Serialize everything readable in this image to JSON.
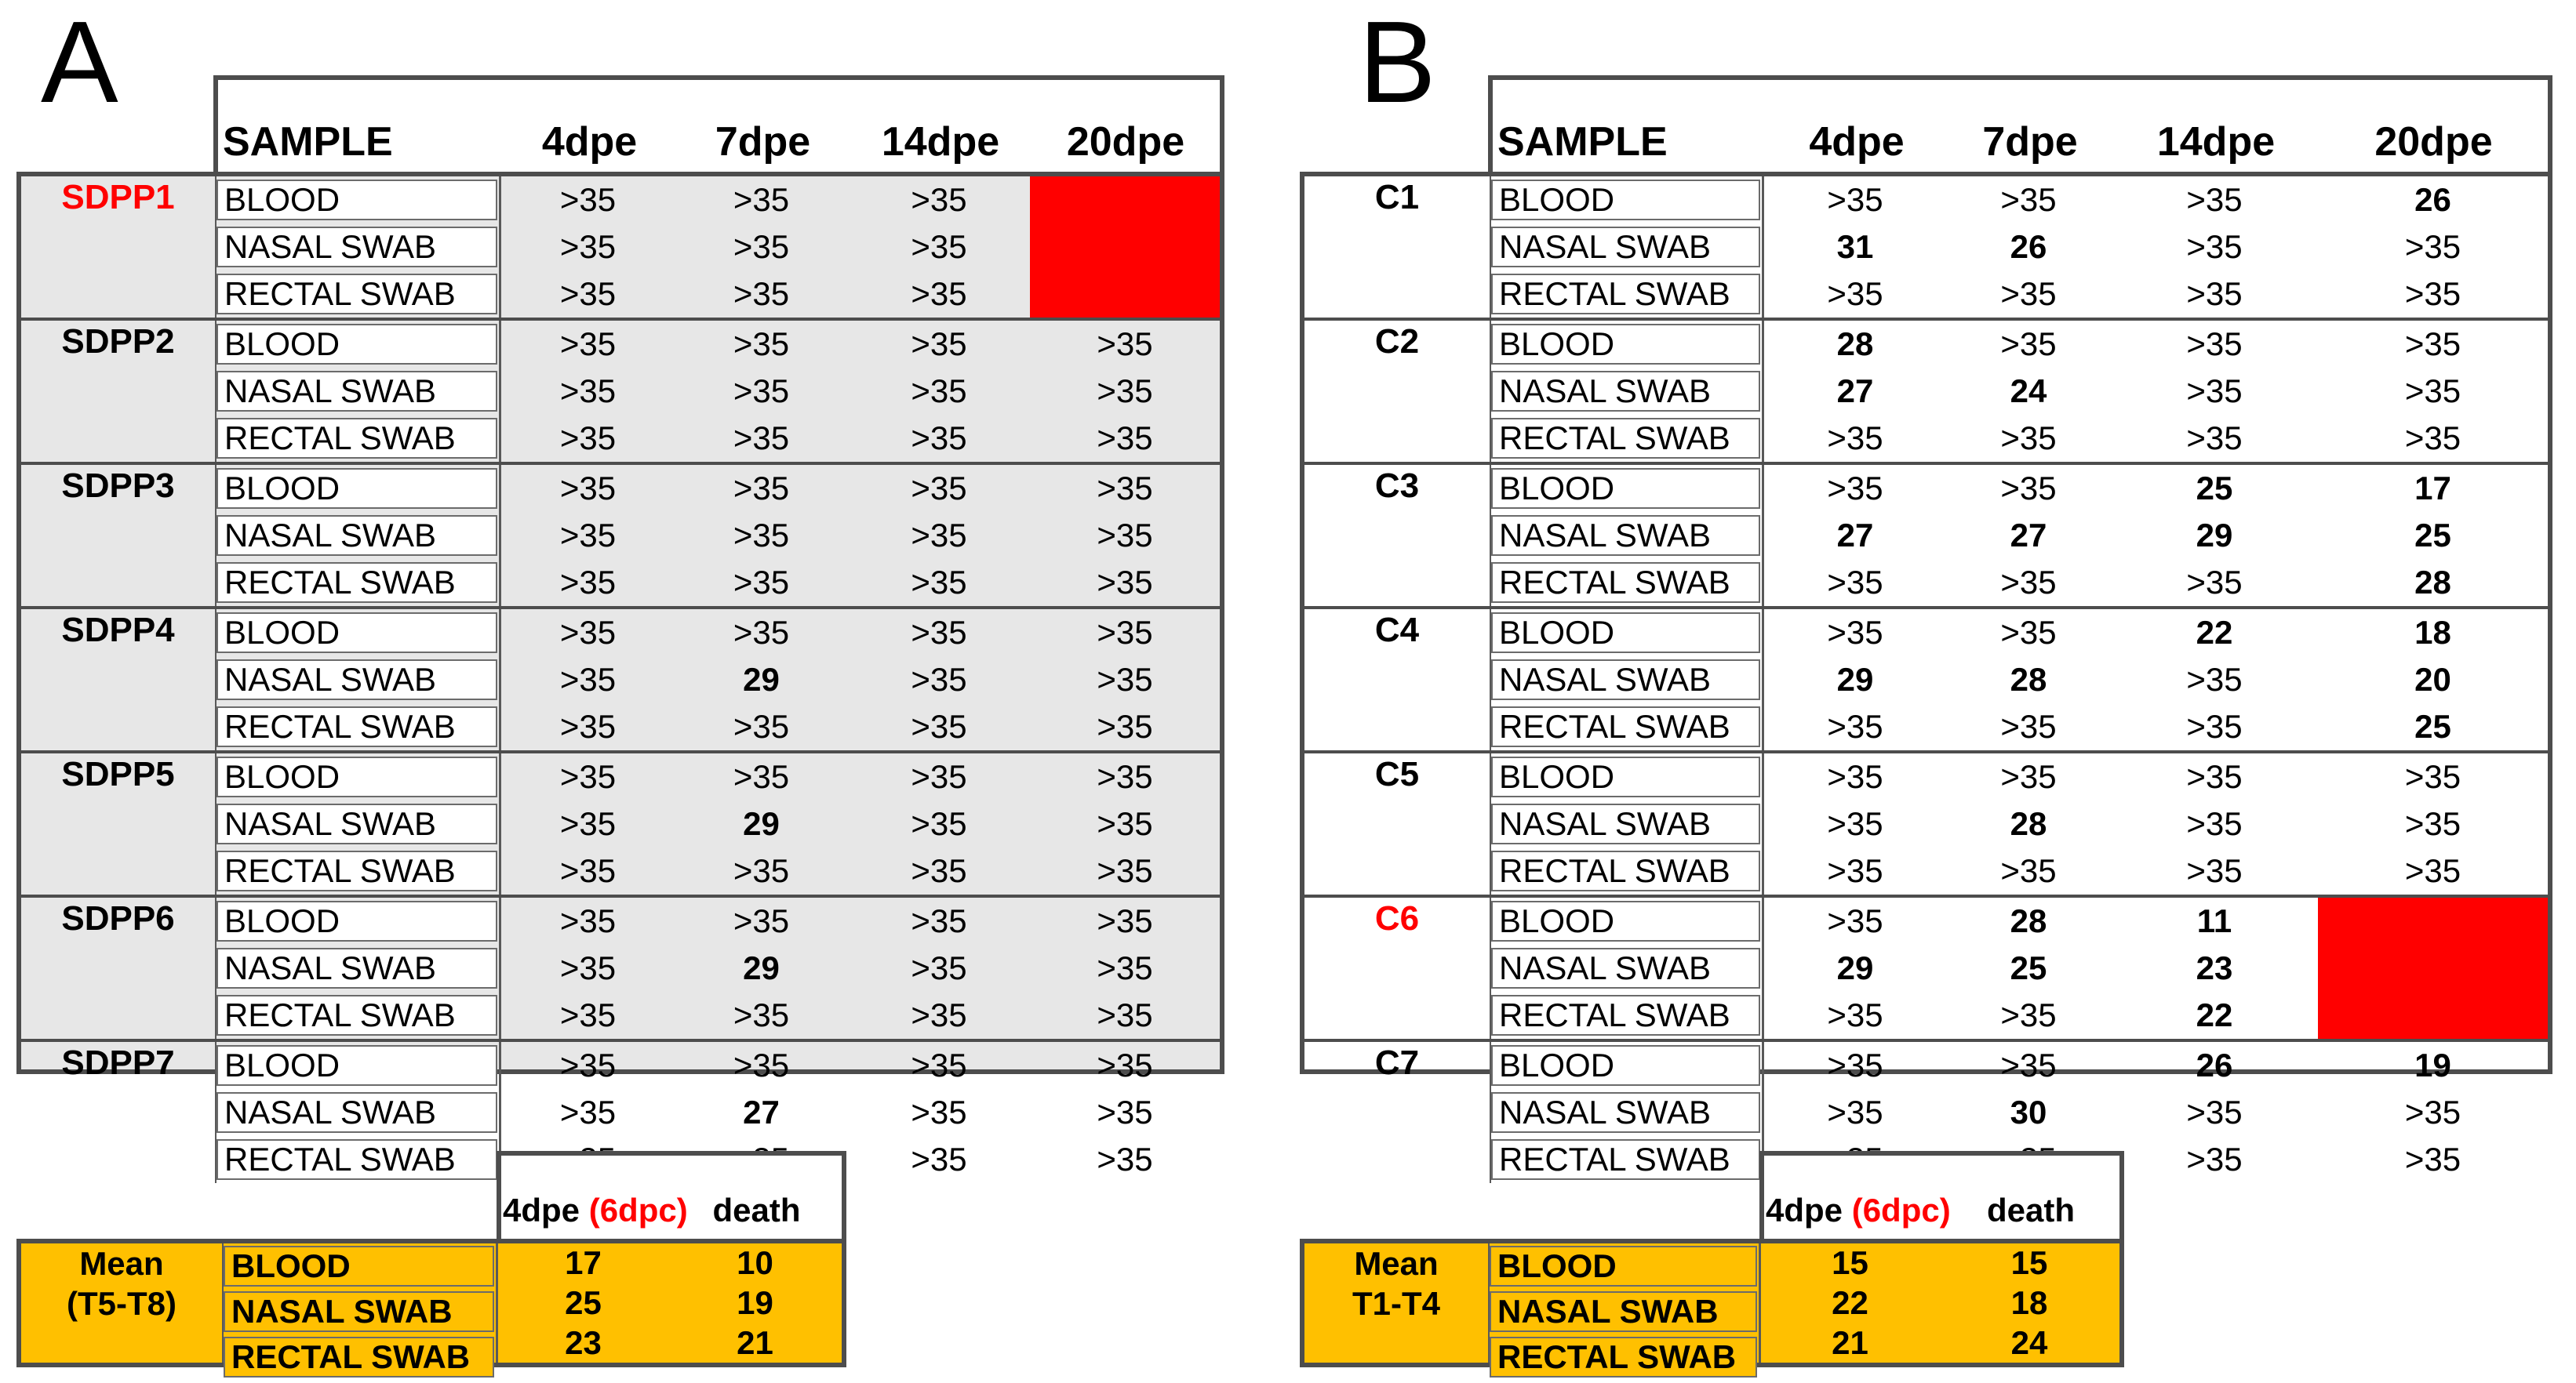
{
  "figure": {
    "colors": {
      "alert_red": "#FF0000",
      "mean_orange": "#FFC000",
      "panel_a_fill": "#E7E7E7",
      "border_dark": "#4D4D4D",
      "highlight_name_red": "#FF0000"
    },
    "panels": [
      {
        "id": "A",
        "letter": "A",
        "columns": [
          "SAMPLE",
          "4dpe",
          "7dpe",
          "14dpe",
          "20dpe"
        ],
        "groups": [
          {
            "name": "SDPP1",
            "name_red": true,
            "red_block": true,
            "rows": [
              {
                "sample": "BLOOD",
                "values": [
                  ">35",
                  ">35",
                  ">35"
                ]
              },
              {
                "sample": "NASAL SWAB",
                "values": [
                  ">35",
                  ">35",
                  ">35"
                ]
              },
              {
                "sample": "RECTAL SWAB",
                "values": [
                  ">35",
                  ">35",
                  ">35"
                ]
              }
            ]
          },
          {
            "name": "SDPP2",
            "name_red": false,
            "red_block": false,
            "rows": [
              {
                "sample": "BLOOD",
                "values": [
                  ">35",
                  ">35",
                  ">35",
                  ">35"
                ]
              },
              {
                "sample": "NASAL SWAB",
                "values": [
                  ">35",
                  ">35",
                  ">35",
                  ">35"
                ]
              },
              {
                "sample": "RECTAL SWAB",
                "values": [
                  ">35",
                  ">35",
                  ">35",
                  ">35"
                ]
              }
            ]
          },
          {
            "name": "SDPP3",
            "name_red": false,
            "red_block": false,
            "rows": [
              {
                "sample": "BLOOD",
                "values": [
                  ">35",
                  ">35",
                  ">35",
                  ">35"
                ]
              },
              {
                "sample": "NASAL SWAB",
                "values": [
                  ">35",
                  ">35",
                  ">35",
                  ">35"
                ]
              },
              {
                "sample": "RECTAL SWAB",
                "values": [
                  ">35",
                  ">35",
                  ">35",
                  ">35"
                ]
              }
            ]
          },
          {
            "name": "SDPP4",
            "name_red": false,
            "red_block": false,
            "rows": [
              {
                "sample": "BLOOD",
                "values": [
                  ">35",
                  ">35",
                  ">35",
                  ">35"
                ]
              },
              {
                "sample": "NASAL SWAB",
                "values": [
                  ">35",
                  "29",
                  ">35",
                  ">35"
                ]
              },
              {
                "sample": "RECTAL SWAB",
                "values": [
                  ">35",
                  ">35",
                  ">35",
                  ">35"
                ]
              }
            ]
          },
          {
            "name": "SDPP5",
            "name_red": false,
            "red_block": false,
            "rows": [
              {
                "sample": "BLOOD",
                "values": [
                  ">35",
                  ">35",
                  ">35",
                  ">35"
                ]
              },
              {
                "sample": "NASAL SWAB",
                "values": [
                  ">35",
                  "29",
                  ">35",
                  ">35"
                ]
              },
              {
                "sample": "RECTAL SWAB",
                "values": [
                  ">35",
                  ">35",
                  ">35",
                  ">35"
                ]
              }
            ]
          },
          {
            "name": "SDPP6",
            "name_red": false,
            "red_block": false,
            "rows": [
              {
                "sample": "BLOOD",
                "values": [
                  ">35",
                  ">35",
                  ">35",
                  ">35"
                ]
              },
              {
                "sample": "NASAL SWAB",
                "values": [
                  ">35",
                  "29",
                  ">35",
                  ">35"
                ]
              },
              {
                "sample": "RECTAL SWAB",
                "values": [
                  ">35",
                  ">35",
                  ">35",
                  ">35"
                ]
              }
            ]
          },
          {
            "name": "SDPP7",
            "name_red": false,
            "red_block": false,
            "rows": [
              {
                "sample": "BLOOD",
                "values": [
                  ">35",
                  ">35",
                  ">35",
                  ">35"
                ]
              },
              {
                "sample": "NASAL SWAB",
                "values": [
                  ">35",
                  "27",
                  ">35",
                  ">35"
                ]
              },
              {
                "sample": "RECTAL SWAB",
                "values": [
                  ">35",
                  ">35",
                  ">35",
                  ">35"
                ]
              }
            ]
          }
        ],
        "mean": {
          "label_lines": [
            "Mean",
            "(T5-T8)"
          ],
          "header": {
            "dpe": "4dpe",
            "paren": "(6dpc)",
            "death": "death"
          },
          "rows": [
            {
              "sample": "BLOOD",
              "dpe4": "17",
              "death": "10"
            },
            {
              "sample": "NASAL SWAB",
              "dpe4": "25",
              "death": "19"
            },
            {
              "sample": "RECTAL SWAB",
              "dpe4": "23",
              "death": "21"
            }
          ]
        }
      },
      {
        "id": "B",
        "letter": "B",
        "columns": [
          "SAMPLE",
          "4dpe",
          "7dpe",
          "14dpe",
          "20dpe"
        ],
        "groups": [
          {
            "name": "C1",
            "name_red": false,
            "red_block": false,
            "rows": [
              {
                "sample": "BLOOD",
                "values": [
                  ">35",
                  ">35",
                  ">35",
                  "26"
                ]
              },
              {
                "sample": "NASAL SWAB",
                "values": [
                  "31",
                  "26",
                  ">35",
                  ">35"
                ]
              },
              {
                "sample": "RECTAL SWAB",
                "values": [
                  ">35",
                  ">35",
                  ">35",
                  ">35"
                ]
              }
            ]
          },
          {
            "name": "C2",
            "name_red": false,
            "red_block": false,
            "rows": [
              {
                "sample": "BLOOD",
                "values": [
                  "28",
                  ">35",
                  ">35",
                  ">35"
                ]
              },
              {
                "sample": "NASAL SWAB",
                "values": [
                  "27",
                  "24",
                  ">35",
                  ">35"
                ]
              },
              {
                "sample": "RECTAL SWAB",
                "values": [
                  ">35",
                  ">35",
                  ">35",
                  ">35"
                ]
              }
            ]
          },
          {
            "name": "C3",
            "name_red": false,
            "red_block": false,
            "rows": [
              {
                "sample": "BLOOD",
                "values": [
                  ">35",
                  ">35",
                  "25",
                  "17"
                ]
              },
              {
                "sample": "NASAL SWAB",
                "values": [
                  "27",
                  "27",
                  "29",
                  "25"
                ]
              },
              {
                "sample": "RECTAL SWAB",
                "values": [
                  ">35",
                  ">35",
                  ">35",
                  "28"
                ]
              }
            ]
          },
          {
            "name": "C4",
            "name_red": false,
            "red_block": false,
            "rows": [
              {
                "sample": "BLOOD",
                "values": [
                  ">35",
                  ">35",
                  "22",
                  "18"
                ]
              },
              {
                "sample": "NASAL SWAB",
                "values": [
                  "29",
                  "28",
                  ">35",
                  "20"
                ]
              },
              {
                "sample": "RECTAL SWAB",
                "values": [
                  ">35",
                  ">35",
                  ">35",
                  "25"
                ]
              }
            ]
          },
          {
            "name": "C5",
            "name_red": false,
            "red_block": false,
            "rows": [
              {
                "sample": "BLOOD",
                "values": [
                  ">35",
                  ">35",
                  ">35",
                  ">35"
                ]
              },
              {
                "sample": "NASAL SWAB",
                "values": [
                  ">35",
                  "28",
                  ">35",
                  ">35"
                ]
              },
              {
                "sample": "RECTAL SWAB",
                "values": [
                  ">35",
                  ">35",
                  ">35",
                  ">35"
                ]
              }
            ]
          },
          {
            "name": "C6",
            "name_red": true,
            "red_block": true,
            "rows": [
              {
                "sample": "BLOOD",
                "values": [
                  ">35",
                  "28",
                  "11"
                ]
              },
              {
                "sample": "NASAL SWAB",
                "values": [
                  "29",
                  "25",
                  "23"
                ]
              },
              {
                "sample": "RECTAL SWAB",
                "values": [
                  ">35",
                  ">35",
                  "22"
                ]
              }
            ]
          },
          {
            "name": "C7",
            "name_red": false,
            "red_block": false,
            "rows": [
              {
                "sample": "BLOOD",
                "values": [
                  ">35",
                  ">35",
                  "26",
                  "19"
                ]
              },
              {
                "sample": "NASAL SWAB",
                "values": [
                  ">35",
                  "30",
                  ">35",
                  ">35"
                ]
              },
              {
                "sample": "RECTAL SWAB",
                "values": [
                  ">35",
                  ">35",
                  ">35",
                  ">35"
                ]
              }
            ]
          }
        ],
        "mean": {
          "label_lines": [
            "Mean",
            "T1-T4"
          ],
          "header": {
            "dpe": "4dpe",
            "paren": "(6dpc)",
            "death": "death"
          },
          "rows": [
            {
              "sample": "BLOOD",
              "dpe4": "15",
              "death": "15"
            },
            {
              "sample": "NASAL SWAB",
              "dpe4": "22",
              "death": "18"
            },
            {
              "sample": "RECTAL SWAB",
              "dpe4": "21",
              "death": "24"
            }
          ]
        }
      }
    ]
  }
}
